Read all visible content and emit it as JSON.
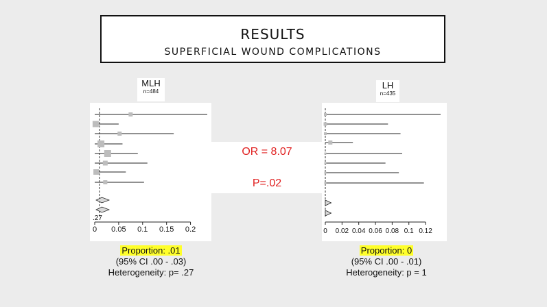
{
  "slide": {
    "title": "RESULTS",
    "subtitle": "SUPERFICIAL WOUND COMPLICATIONS",
    "middle": {
      "or_text": "OR = 8.07",
      "p_text": "P=.02"
    }
  },
  "left": {
    "label": "MLH",
    "n": "n=484",
    "proportion": "Proportion: .01",
    "ci": "(95% CI .00 - .03)",
    "heterogeneity": "Heterogeneity: p= .27"
  },
  "right": {
    "label": "LH",
    "n": "n=435",
    "proportion": "Proportion: 0",
    "ci": "(95% CI .00 - .01)",
    "heterogeneity": "Heterogeneity: p = 1"
  },
  "chart_data": [
    {
      "type": "forest",
      "x_ticks": [
        0,
        0.05,
        0.1,
        0.15,
        0.2
      ],
      "x_tick_labels": [
        "0",
        "0.05",
        "0.1",
        "0.15",
        "0.2"
      ],
      "extra_label": ".27",
      "xlim": [
        0,
        0.235
      ],
      "reference_x": 0.01,
      "studies": [
        {
          "est": 0.075,
          "lo": 0.0,
          "hi": 0.235
        },
        {
          "est": 0.002,
          "lo": 0.0,
          "hi": 0.05
        },
        {
          "est": 0.052,
          "lo": 0.0,
          "hi": 0.165
        },
        {
          "est": 0.013,
          "lo": 0.0,
          "hi": 0.058
        },
        {
          "est": 0.027,
          "lo": 0.0,
          "hi": 0.09
        },
        {
          "est": 0.022,
          "lo": 0.0,
          "hi": 0.11
        },
        {
          "est": 0.003,
          "lo": 0.0,
          "hi": 0.065
        },
        {
          "est": 0.022,
          "lo": 0.0,
          "hi": 0.103
        }
      ],
      "pooled": [
        {
          "est": 0.01,
          "lo": 0.0,
          "hi": 0.03
        },
        {
          "est": 0.01,
          "lo": 0.0,
          "hi": 0.03
        }
      ]
    },
    {
      "type": "forest",
      "x_ticks": [
        0,
        0.02,
        0.04,
        0.06,
        0.08,
        0.1,
        0.12
      ],
      "x_tick_labels": [
        "0",
        "0.02",
        "0.04",
        "0.06",
        "0.08",
        "0.1",
        "0.12"
      ],
      "xlim": [
        0,
        0.138
      ],
      "reference_x": 0.0,
      "studies": [
        {
          "est": 0.0,
          "lo": 0.0,
          "hi": 0.138
        },
        {
          "est": 0.0,
          "lo": 0.0,
          "hi": 0.075
        },
        {
          "est": 0.0,
          "lo": 0.0,
          "hi": 0.09
        },
        {
          "est": 0.006,
          "lo": 0.0,
          "hi": 0.033
        },
        {
          "est": 0.0,
          "lo": 0.0,
          "hi": 0.092
        },
        {
          "est": 0.0,
          "lo": 0.0,
          "hi": 0.072
        },
        {
          "est": 0.0,
          "lo": 0.0,
          "hi": 0.088
        },
        {
          "est": 0.0,
          "lo": 0.0,
          "hi": 0.118
        }
      ],
      "pooled": [
        {
          "est": 0.0,
          "lo": 0.0,
          "hi": 0.01
        },
        {
          "est": 0.0,
          "lo": 0.0,
          "hi": 0.01
        }
      ]
    }
  ]
}
